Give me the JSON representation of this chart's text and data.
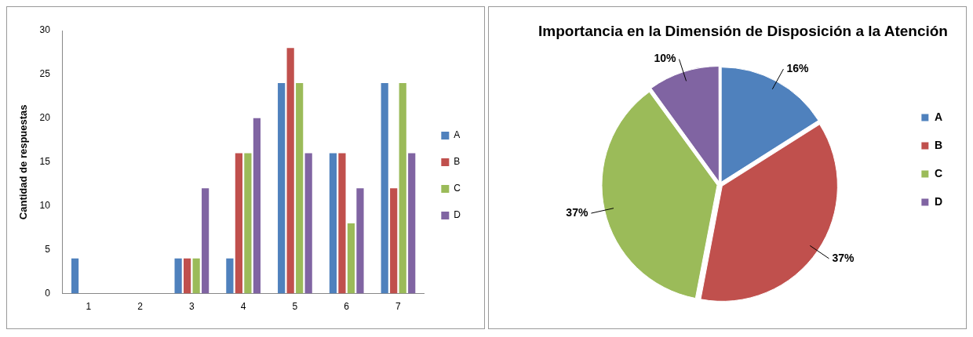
{
  "chart_data": [
    {
      "type": "bar",
      "ylabel": "Cantidad de respuestas",
      "categories": [
        "1",
        "2",
        "3",
        "4",
        "5",
        "6",
        "7"
      ],
      "series": [
        {
          "name": "A",
          "color": "#4f81bd",
          "values": [
            4,
            0,
            4,
            4,
            24,
            16,
            24
          ]
        },
        {
          "name": "B",
          "color": "#c0504d",
          "values": [
            0,
            0,
            4,
            16,
            28,
            16,
            12
          ]
        },
        {
          "name": "C",
          "color": "#9bbb59",
          "values": [
            0,
            0,
            4,
            16,
            24,
            8,
            24
          ]
        },
        {
          "name": "D",
          "color": "#8064a2",
          "values": [
            0,
            0,
            12,
            20,
            16,
            12,
            16
          ]
        }
      ],
      "ylim": [
        0,
        30
      ],
      "yticks": [
        0,
        5,
        10,
        15,
        20,
        25,
        30
      ],
      "grid": false,
      "legend": "right"
    },
    {
      "type": "pie",
      "title": "Importancia en la Dimensión de Disposición a la Atención",
      "categories": [
        "A",
        "B",
        "C",
        "D"
      ],
      "values": [
        16,
        37,
        37,
        10
      ],
      "value_labels": [
        "16%",
        "37%",
        "37%",
        "10%"
      ],
      "colors": [
        "#4f81bd",
        "#c0504d",
        "#9bbb59",
        "#8064a2"
      ],
      "legend": "right"
    }
  ]
}
